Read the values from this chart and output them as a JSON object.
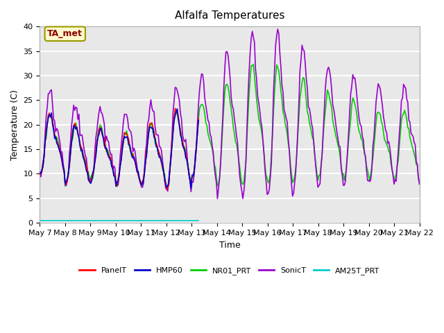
{
  "title": "Alfalfa Temperatures",
  "xlabel": "Time",
  "ylabel": "Temperature (C)",
  "ylim": [
    0,
    40
  ],
  "n_days": 15,
  "x_tick_labels": [
    "May 7",
    "May 8",
    "May 9",
    "May 10",
    "May 11",
    "May 12",
    "May 13",
    "May 14",
    "May 15",
    "May 16",
    "May 17",
    "May 18",
    "May 19",
    "May 20",
    "May 21",
    "May 22"
  ],
  "annotation": "TA_met",
  "annotation_color": "#8B0000",
  "annotation_bg": "#FFFACD",
  "annotation_edge": "#999900",
  "series_colors": {
    "PanelT": "#FF0000",
    "HMP60": "#0000CC",
    "NR01_PRT": "#00CC00",
    "SonicT": "#9900CC",
    "AM25T_PRT": "#00CCCC"
  },
  "background_color": "#E8E8E8",
  "grid_color": "#FFFFFF",
  "day_amps": [
    7,
    7,
    6,
    6,
    7,
    9,
    9,
    12,
    14,
    14,
    12,
    10,
    9,
    8,
    8
  ],
  "day_bases": [
    16,
    14,
    14,
    13,
    14,
    15,
    17,
    18,
    20,
    20,
    19,
    18,
    17,
    16,
    16
  ]
}
